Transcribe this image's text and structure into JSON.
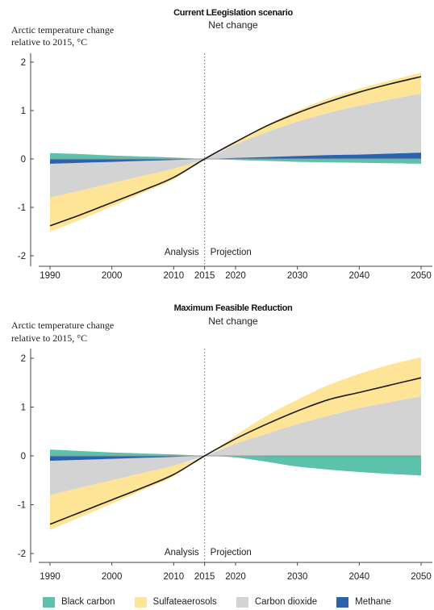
{
  "colors": {
    "black_carbon": "#5cc2ab",
    "sulfate_aerosols": "#fde497",
    "carbon_dioxide": "#d3d3d3",
    "methane": "#2a63ad",
    "net_line": "#1a1a1a"
  },
  "legend": [
    {
      "key": "black_carbon",
      "label": "Black carbon"
    },
    {
      "key": "sulfate_aerosols",
      "label": "Sulfateaerosols"
    },
    {
      "key": "carbon_dioxide",
      "label": "Carbon dioxide"
    },
    {
      "key": "methane",
      "label": "Methane"
    }
  ],
  "chart_data": [
    {
      "type": "area",
      "title": "Current LEegislation scenario",
      "subtitle": "Net change",
      "ylabel": [
        "Arctic temperature change",
        "relative to 2015, °C"
      ],
      "xlabel": "",
      "x_ticks": [
        1990,
        2000,
        2010,
        2015,
        2020,
        2030,
        2040,
        2050
      ],
      "y_ticks": [
        -2,
        -1,
        0,
        1,
        2
      ],
      "xlim": [
        1990,
        2050
      ],
      "ylim": [
        -2.1,
        2.2
      ],
      "divider_year": 2015,
      "annotations": {
        "left": "Analysis",
        "right": "Projection"
      },
      "x": [
        1990,
        1995,
        2000,
        2005,
        2010,
        2015,
        2020,
        2025,
        2030,
        2035,
        2040,
        2045,
        2050
      ],
      "series": [
        {
          "name": "Net change",
          "key": "net",
          "values": [
            -1.38,
            -1.15,
            -0.9,
            -0.65,
            -0.38,
            0.0,
            0.35,
            0.68,
            0.95,
            1.18,
            1.38,
            1.55,
            1.7
          ]
        },
        {
          "name": "Carbon dioxide",
          "key": "carbon_dioxide",
          "values": [
            -0.8,
            -0.65,
            -0.5,
            -0.35,
            -0.2,
            0.0,
            0.3,
            0.55,
            0.77,
            0.95,
            1.1,
            1.23,
            1.35
          ]
        },
        {
          "name": "Sulfate aerosols (upper bound)",
          "key": "sulfate_upper",
          "values": [
            -0.8,
            -0.65,
            -0.5,
            -0.35,
            -0.2,
            0.0,
            0.35,
            0.7,
            1.0,
            1.25,
            1.45,
            1.62,
            1.78
          ]
        },
        {
          "name": "Sulfate aerosols (lower bound)",
          "key": "sulfate_lower",
          "values": [
            -1.5,
            -1.25,
            -0.98,
            -0.7,
            -0.42,
            0.0,
            0.3,
            0.55,
            0.77,
            0.95,
            1.1,
            1.23,
            1.35
          ]
        },
        {
          "name": "Black carbon",
          "key": "black_carbon",
          "values": [
            0.12,
            0.1,
            0.07,
            0.05,
            0.03,
            0.0,
            -0.02,
            -0.04,
            -0.06,
            -0.07,
            -0.08,
            -0.09,
            -0.1
          ]
        },
        {
          "name": "Methane",
          "key": "methane",
          "values": [
            -0.1,
            -0.08,
            -0.06,
            -0.04,
            -0.02,
            0.0,
            0.02,
            0.04,
            0.06,
            0.08,
            0.09,
            0.11,
            0.13
          ]
        }
      ]
    },
    {
      "type": "area",
      "title": "Maximum Feasible Reduction",
      "subtitle": "Net change",
      "ylabel": [
        "Arctic temperature change",
        "relative to 2015, °C"
      ],
      "xlabel": "",
      "x_ticks": [
        1990,
        2000,
        2010,
        2015,
        2020,
        2030,
        2040,
        2050
      ],
      "y_ticks": [
        -2,
        -1,
        0,
        1,
        2
      ],
      "xlim": [
        1990,
        2050
      ],
      "ylim": [
        -2.1,
        2.2
      ],
      "divider_year": 2015,
      "annotations": {
        "left": "Analysis",
        "right": "Projection"
      },
      "x": [
        1990,
        1995,
        2000,
        2005,
        2010,
        2015,
        2020,
        2025,
        2030,
        2035,
        2040,
        2045,
        2050
      ],
      "series": [
        {
          "name": "Net change",
          "key": "net",
          "values": [
            -1.4,
            -1.15,
            -0.9,
            -0.65,
            -0.38,
            0.0,
            0.35,
            0.65,
            0.92,
            1.15,
            1.3,
            1.45,
            1.6
          ]
        },
        {
          "name": "Carbon dioxide",
          "key": "carbon_dioxide",
          "values": [
            -0.8,
            -0.65,
            -0.5,
            -0.35,
            -0.2,
            0.0,
            0.25,
            0.45,
            0.65,
            0.82,
            0.98,
            1.1,
            1.22
          ]
        },
        {
          "name": "Sulfate aerosols (upper bound)",
          "key": "sulfate_upper",
          "values": [
            -0.8,
            -0.65,
            -0.5,
            -0.35,
            -0.2,
            0.0,
            0.42,
            0.82,
            1.15,
            1.45,
            1.68,
            1.87,
            2.02
          ]
        },
        {
          "name": "Sulfate aerosols (lower bound)",
          "key": "sulfate_lower",
          "values": [
            -1.52,
            -1.25,
            -0.98,
            -0.7,
            -0.42,
            0.0,
            0.25,
            0.45,
            0.65,
            0.82,
            0.98,
            1.1,
            1.22
          ]
        },
        {
          "name": "Black carbon",
          "key": "black_carbon",
          "values": [
            0.13,
            0.1,
            0.07,
            0.05,
            0.03,
            0.0,
            -0.03,
            -0.12,
            -0.22,
            -0.28,
            -0.33,
            -0.37,
            -0.4
          ]
        },
        {
          "name": "Methane",
          "key": "methane",
          "values": [
            -0.1,
            -0.08,
            -0.06,
            -0.04,
            -0.02,
            0.0,
            0.0,
            -0.01,
            -0.01,
            -0.01,
            -0.01,
            -0.01,
            -0.01
          ]
        }
      ]
    }
  ]
}
